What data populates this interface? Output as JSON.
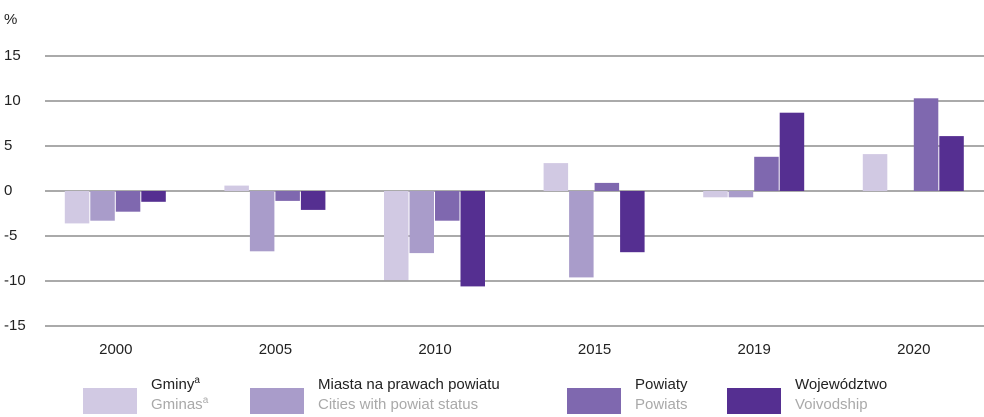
{
  "chart_data": {
    "type": "bar",
    "y_label": "%",
    "categories": [
      "2000",
      "2005",
      "2010",
      "2015",
      "2019",
      "2020"
    ],
    "series": [
      {
        "name": "Gminy",
        "superscript": "a",
        "name_en": "Gminas",
        "color": "#d1c9e3",
        "values": [
          -3.6,
          0.6,
          -9.9,
          3.1,
          -0.7,
          4.1
        ]
      },
      {
        "name": "Miasta na prawach powiatu",
        "name_en": "Cities with powiat status",
        "color": "#a99cca",
        "values": [
          -3.3,
          -6.7,
          -6.9,
          -9.6,
          -0.7,
          null
        ]
      },
      {
        "name": "Powiaty",
        "name_en": "Powiats",
        "color": "#7f68af",
        "values": [
          -2.3,
          -1.1,
          -3.3,
          0.9,
          3.8,
          10.3
        ]
      },
      {
        "name": "Województwo",
        "name_en": "Voivodship",
        "color": "#552f91",
        "values": [
          -1.2,
          -2.1,
          -10.6,
          -6.8,
          8.7,
          6.1
        ]
      }
    ],
    "ylim": [
      -15,
      15
    ],
    "yticks": [
      -15,
      -10,
      -5,
      0,
      5,
      10,
      15
    ],
    "grid": true
  }
}
